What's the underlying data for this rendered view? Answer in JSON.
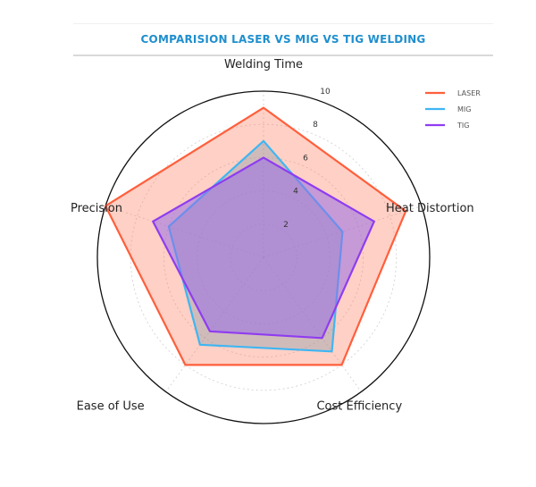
{
  "chart_data": {
    "type": "radar",
    "title": "COMPARISION LASER VS MIG VS TIG WELDING",
    "axes": [
      "Welding Time",
      "Heat Distortion",
      "Cost Efficiency",
      "Ease of Use",
      "Precision"
    ],
    "rlim": [
      0,
      10
    ],
    "rticks": [
      2,
      4,
      6,
      8,
      10
    ],
    "grid": true,
    "legend_position": "top-right",
    "series": [
      {
        "name": "LASER",
        "values": [
          9,
          9,
          8,
          8,
          10
        ],
        "color": "#ff5f3c",
        "fill": "rgba(255,120,90,0.35)"
      },
      {
        "name": "MIG",
        "values": [
          7,
          5,
          7,
          6.5,
          6
        ],
        "color": "#3fb6f2",
        "fill": "rgba(120,150,170,0.35)"
      },
      {
        "name": "TIG",
        "values": [
          6,
          7,
          6,
          5.5,
          7
        ],
        "color": "#8f3cf0",
        "fill": "rgba(150,110,230,0.55)"
      }
    ]
  }
}
